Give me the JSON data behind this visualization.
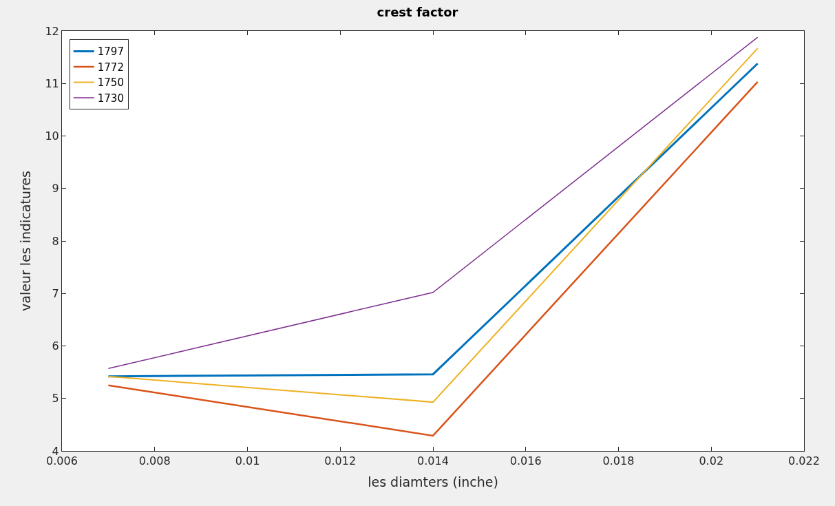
{
  "chart_data": {
    "type": "line",
    "title": "crest factor",
    "xlabel": "les diamters (inche)",
    "ylabel": "valeur les indicatures",
    "x": [
      0.007,
      0.014,
      0.021
    ],
    "series": [
      {
        "name": "1797",
        "color": "#0072bd",
        "values": [
          5.42,
          5.46,
          11.38
        ]
      },
      {
        "name": "1772",
        "color": "#d95319",
        "values": [
          5.25,
          4.29,
          11.03
        ]
      },
      {
        "name": "1750",
        "color": "#edb120",
        "values": [
          5.42,
          4.93,
          11.67
        ]
      },
      {
        "name": "1730",
        "color": "#7e2f8e",
        "values": [
          5.57,
          7.02,
          11.88
        ]
      }
    ],
    "xlim": [
      0.006,
      0.022
    ],
    "xticks": [
      0.006,
      0.008,
      0.01,
      0.012,
      0.014,
      0.016,
      0.018,
      0.02,
      0.022
    ],
    "ylim": [
      4,
      12
    ],
    "yticks": [
      4,
      5,
      6,
      7,
      8,
      9,
      10,
      11,
      12
    ],
    "grid": false,
    "legend": "top left",
    "marker": "none",
    "line_style": "solid"
  }
}
